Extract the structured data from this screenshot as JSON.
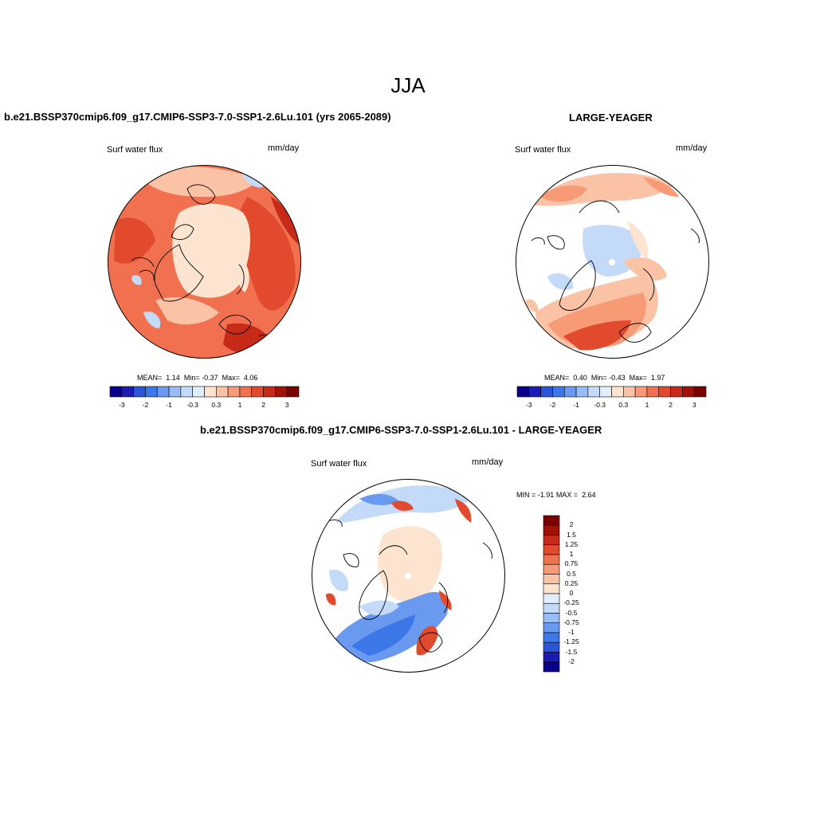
{
  "season": "JJA",
  "panels": {
    "left": {
      "title": "b.e21.BSSP370cmip6.f09_g17.CMIP6-SSP3-7.0-SSP1-2.6Lu.101 (yrs 2065-2089)",
      "variable": "Surf water flux",
      "units": "mm/day",
      "stats": {
        "mean_label": "MEAN=",
        "mean": "1.14",
        "min_label": "Min=",
        "min": "-0.37",
        "max_label": "Max=",
        "max": "4.06"
      }
    },
    "right": {
      "title": "LARGE-YEAGER",
      "variable": "Surf water flux",
      "units": "mm/day",
      "stats": {
        "mean_label": "MEAN=",
        "mean": "0.40",
        "min_label": "Min=",
        "min": "-0.43",
        "max_label": "Max=",
        "max": "1.97"
      }
    },
    "diff": {
      "title": "b.e21.BSSP370cmip6.f09_g17.CMIP6-SSP3-7.0-SSP1-2.6Lu.101 - LARGE-YEAGER",
      "variable": "Surf water flux",
      "units": "mm/day",
      "stats": {
        "min_label": "MIN =",
        "min": "-1.91",
        "max_label": "MAX =",
        "max": "2.64"
      }
    }
  },
  "colorbar_horizontal": {
    "colors": [
      "#08008c",
      "#1c1cb4",
      "#2a55d8",
      "#3c78e8",
      "#6a9af0",
      "#98bcf5",
      "#c3dbf8",
      "#e2eefb",
      "#fde4d0",
      "#fbc3a6",
      "#f79a76",
      "#f07050",
      "#e24a2e",
      "#c72a18",
      "#a01208",
      "#7a0000"
    ],
    "labels": [
      "-3",
      "-2",
      "-1",
      "-0.3",
      "0.3",
      "1",
      "2",
      "3"
    ]
  },
  "colorbar_vertical": {
    "colors": [
      "#7a0000",
      "#a01208",
      "#c72a18",
      "#e24a2e",
      "#f07050",
      "#f79a76",
      "#fbc3a6",
      "#fde4d0",
      "#e2eefb",
      "#c3dbf8",
      "#98bcf5",
      "#6a9af0",
      "#3c78e8",
      "#2a55d8",
      "#1c1cb4",
      "#08008c"
    ],
    "labels": [
      "2",
      "1.5",
      "1.25",
      "1",
      "0.75",
      "0.5",
      "0.25",
      "0",
      "-0.25",
      "-0.5",
      "-0.75",
      "-1",
      "-1.25",
      "-1.5",
      "-2"
    ]
  },
  "map_colors": {
    "left": {
      "base": "#f07050",
      "ocean_mid": "#e24a2e",
      "arctic": "#fde4d0",
      "land_light": "#fbc3a6",
      "blue": "#c3dbf8",
      "hot": "#c72a18"
    },
    "right": {
      "base": "#ffffff",
      "warm": "#fbc3a6",
      "mid": "#f79a76",
      "strong": "#e24a2e",
      "arctic": "#c3dbf8",
      "pale": "#fde4d0"
    },
    "diff": {
      "base": "#ffffff",
      "arctic": "#fde4d0",
      "blue_light": "#c3dbf8",
      "blue": "#6a9af0",
      "blue_dark": "#3c78e8",
      "red": "#e24a2e"
    }
  }
}
